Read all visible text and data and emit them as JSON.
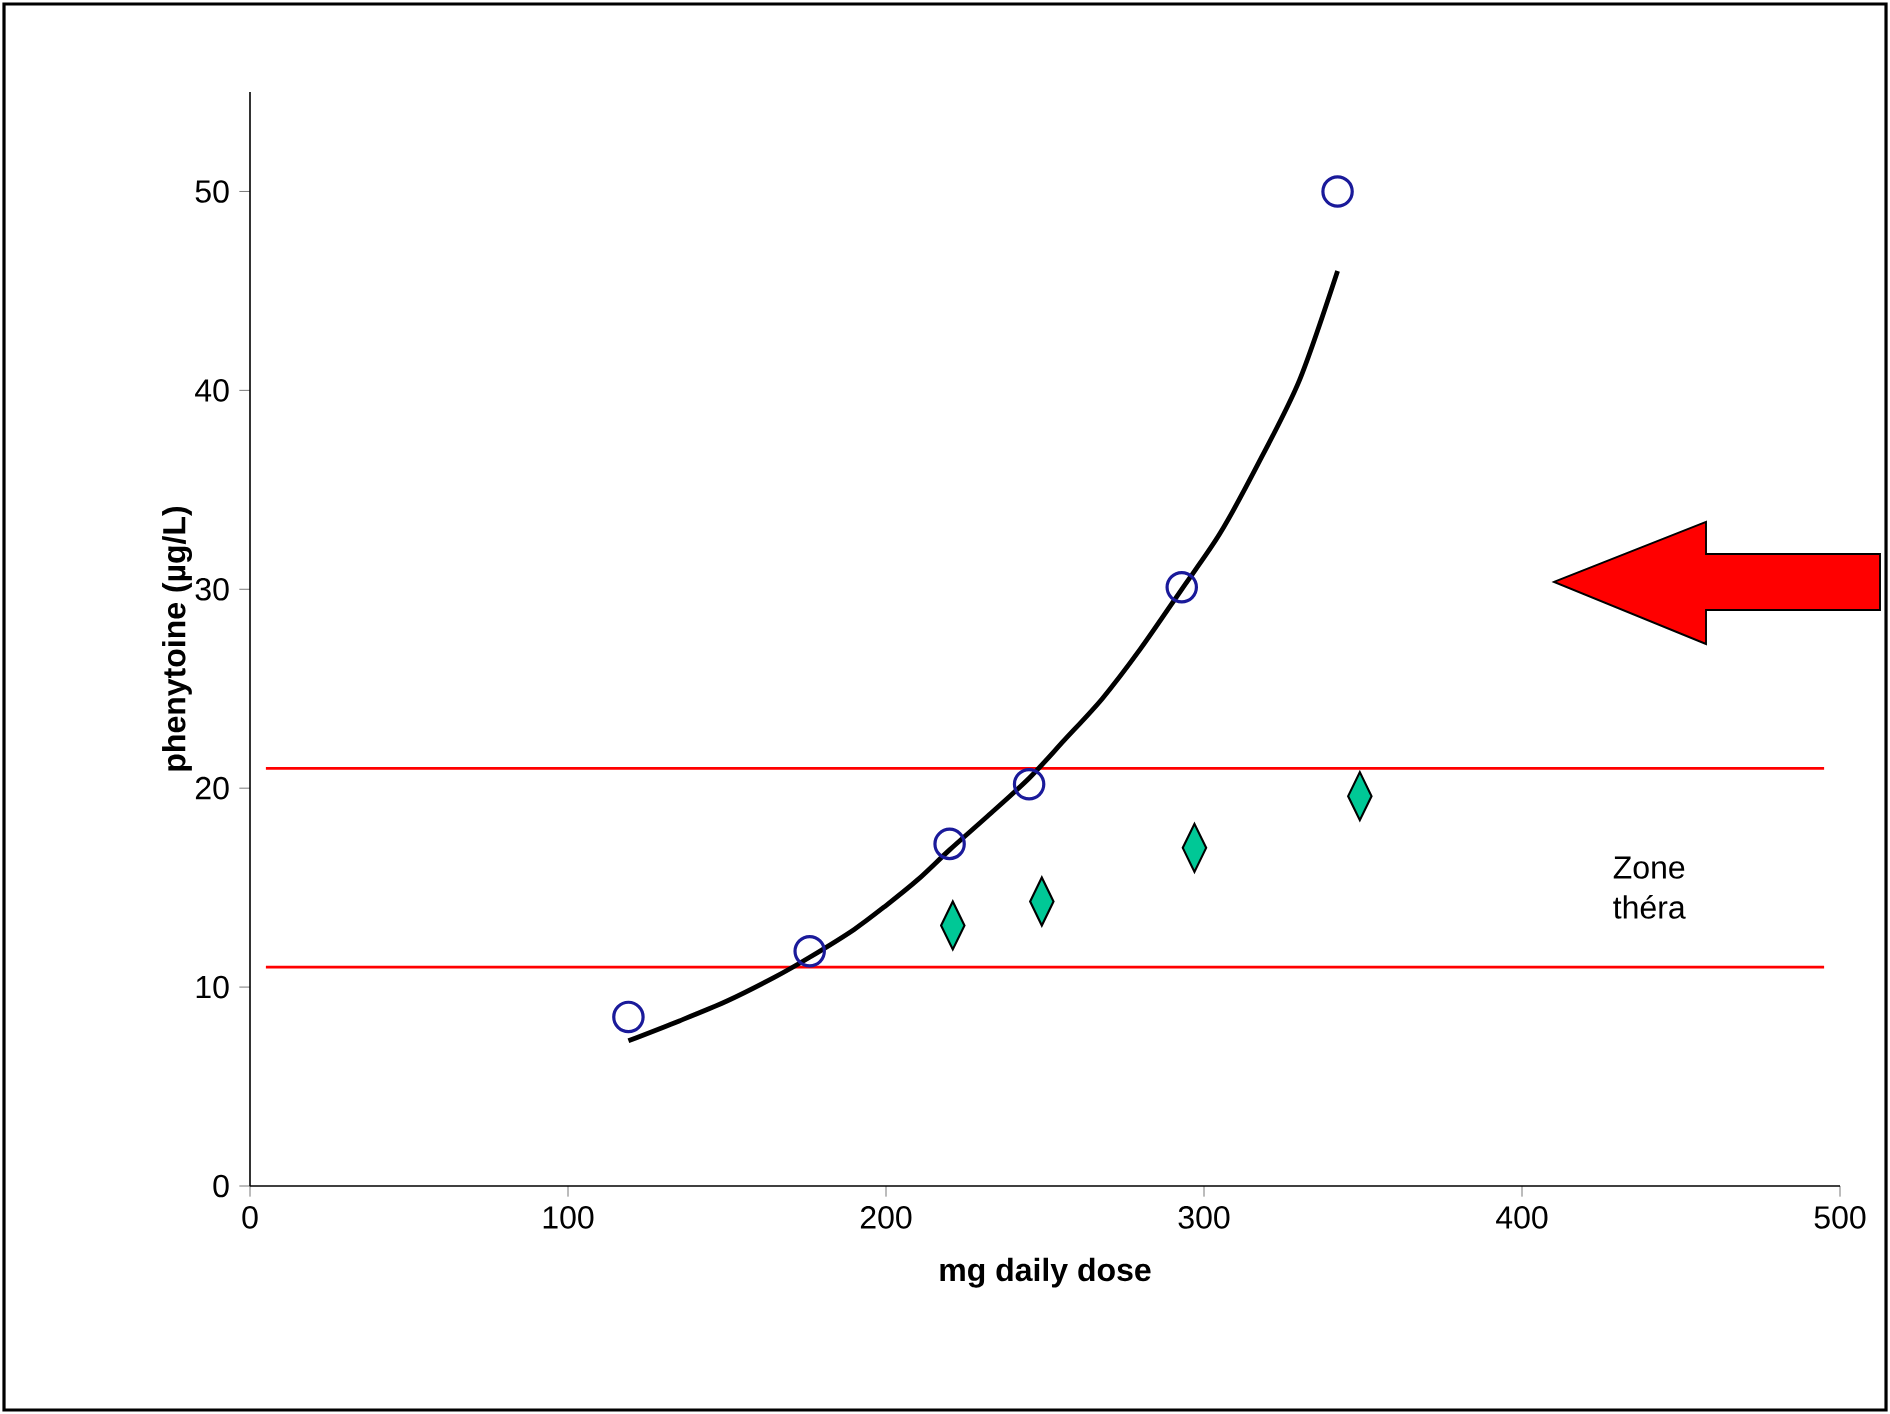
{
  "chart_data": {
    "type": "scatter",
    "xlabel": "mg daily dose",
    "ylabel": "phenytoine (µg/L)",
    "xlim": [
      0,
      500
    ],
    "ylim": [
      0,
      55
    ],
    "xticks": [
      0,
      100,
      200,
      300,
      400,
      500
    ],
    "yticks": [
      0,
      10,
      20,
      30,
      40,
      50
    ],
    "series": [
      {
        "marker": "circle",
        "color": "#1a1a9a",
        "x": [
          119,
          176,
          220,
          245,
          293,
          342
        ],
        "values": [
          8.5,
          11.8,
          17.2,
          20.2,
          30.1,
          50
        ]
      },
      {
        "type": "line",
        "marker": "none",
        "color": "#000000",
        "x": [
          119,
          135,
          150,
          165,
          176,
          190,
          200,
          210,
          220,
          232,
          245,
          256,
          268,
          280,
          293,
          305,
          317,
          330,
          342
        ],
        "values": [
          7.3,
          8.3,
          9.3,
          10.5,
          11.5,
          12.9,
          14.1,
          15.4,
          16.9,
          18.6,
          20.5,
          22.4,
          24.5,
          27,
          30,
          32.8,
          36.3,
          40.5,
          46
        ]
      },
      {
        "marker": "diamond",
        "color": "#00c896",
        "x": [
          221,
          249,
          297,
          349
        ],
        "values": [
          13.1,
          14.3,
          17,
          19.6
        ]
      }
    ],
    "ref_lines": [
      {
        "axis": "y",
        "value": 21,
        "color": "#ff0000"
      },
      {
        "axis": "y",
        "value": 11,
        "color": "#ff0000"
      }
    ],
    "annotations": [
      "Zone théra"
    ]
  }
}
